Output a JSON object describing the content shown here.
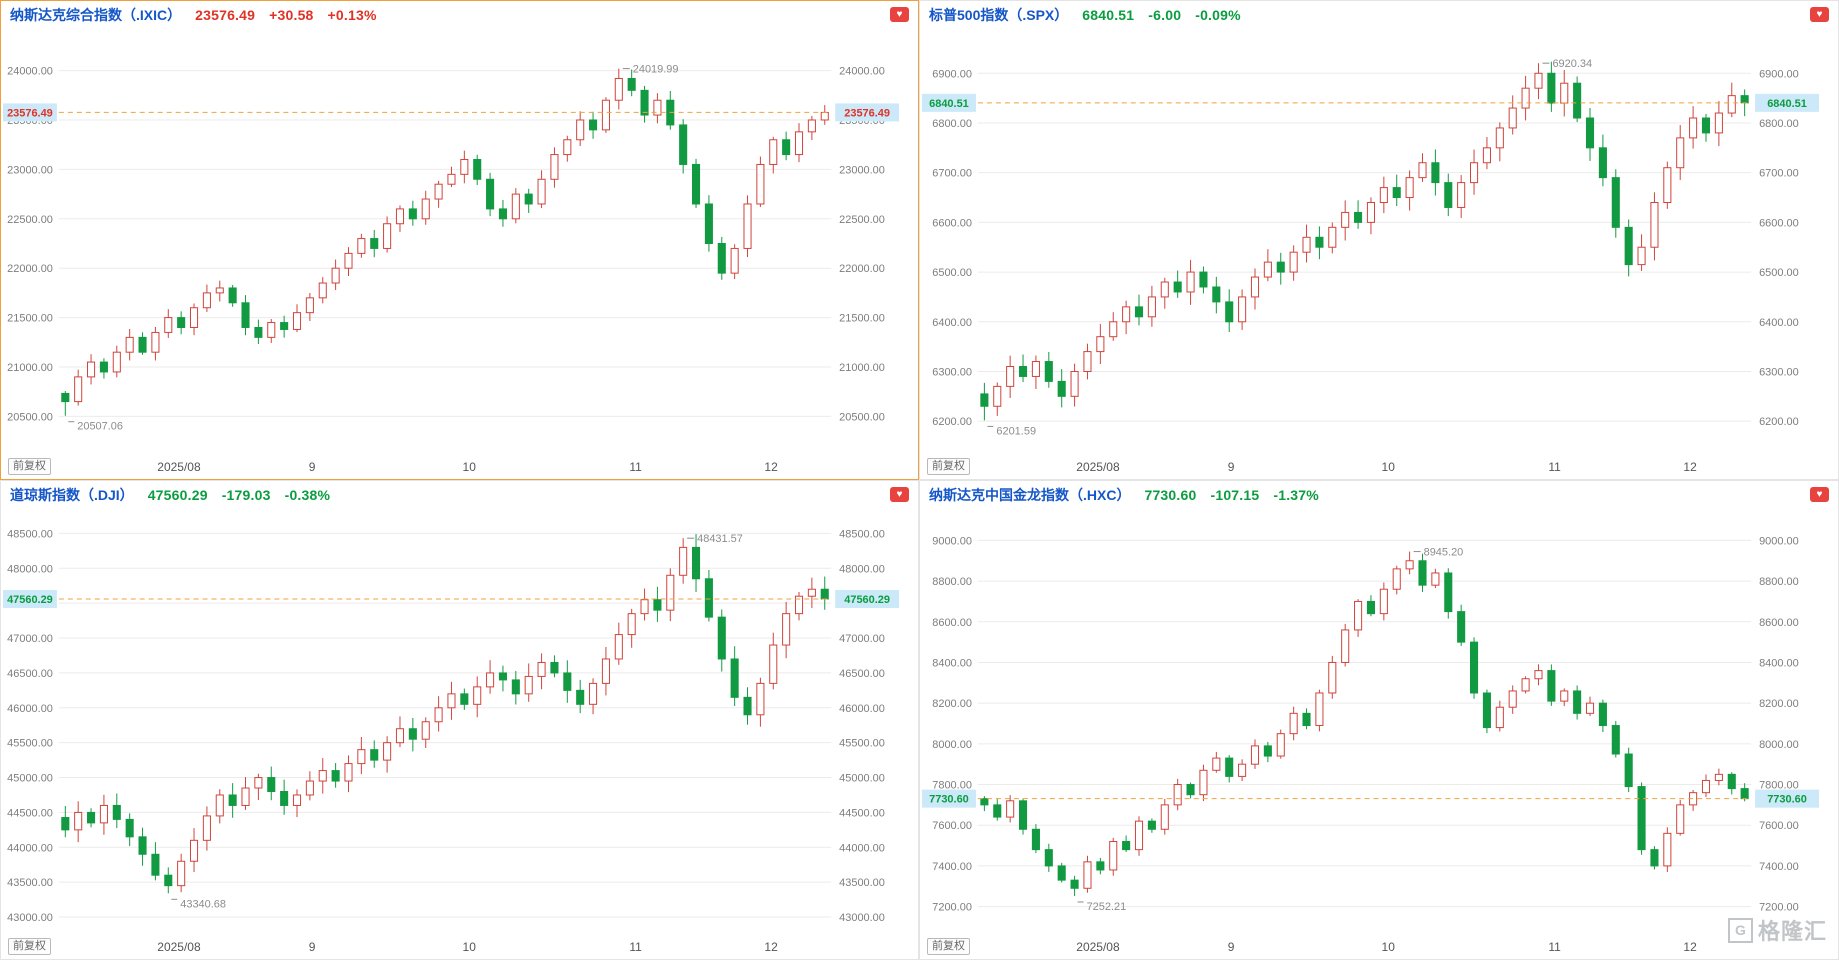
{
  "page": {
    "watermark_logo": "G",
    "watermark_text": "格隆汇"
  },
  "colors": {
    "up": "#d0443c",
    "down": "#129a42",
    "up_text": "#e03225",
    "down_text": "#0a9d3f",
    "title_blue": "#1557c8",
    "grid": "#ebebeb",
    "axis_text": "#7d7d7d",
    "annotation_text": "#8c8c8c",
    "current_line": "#eea23e",
    "label_bg": "#cbe9f8",
    "selected_border": "#efa03a",
    "favorite_bg": "#e8433f"
  },
  "charts": [
    {
      "title": "纳斯达克综合指数（.IXIC）",
      "price": "23576.49",
      "change": "+30.58",
      "change_pct": "+0.13%",
      "direction": "up",
      "selected": true,
      "adjust_label": "前复权",
      "favorite_icon": "heart-icon",
      "chart_data": {
        "type": "candlestick",
        "title": "纳斯达克综合指数（.IXIC）",
        "y_ticks": [
          20500,
          21000,
          21500,
          22000,
          22500,
          23000,
          23500,
          24000
        ],
        "ylim": [
          20150,
          24350
        ],
        "x_ticks": [
          {
            "label": "2025/08",
            "pos": 0.155
          },
          {
            "label": "9",
            "pos": 0.327
          },
          {
            "label": "10",
            "pos": 0.53
          },
          {
            "label": "11",
            "pos": 0.745
          },
          {
            "label": "12",
            "pos": 0.92
          }
        ],
        "last_price": 23576.49,
        "closes": [
          20650,
          20900,
          21050,
          20950,
          21150,
          21300,
          21150,
          21350,
          21500,
          21400,
          21600,
          21750,
          21800,
          21650,
          21400,
          21300,
          21450,
          21380,
          21550,
          21700,
          21850,
          22000,
          22150,
          22300,
          22200,
          22450,
          22600,
          22500,
          22700,
          22850,
          22950,
          23100,
          22900,
          22600,
          22500,
          22750,
          22650,
          22900,
          23150,
          23300,
          23500,
          23400,
          23700,
          23920,
          23800,
          23550,
          23700,
          23450,
          23050,
          22650,
          22250,
          21950,
          22200,
          22650,
          23050,
          23300,
          23150,
          23380,
          23500,
          23576.49
        ],
        "annotations": {
          "high": {
            "index": 43,
            "value": 24019.99,
            "label": "24019.99"
          },
          "low": {
            "index": 0,
            "value": 20507.06,
            "label": "20507.06"
          }
        }
      }
    },
    {
      "title": "标普500指数（.SPX）",
      "price": "6840.51",
      "change": "-6.00",
      "change_pct": "-0.09%",
      "direction": "down",
      "selected": false,
      "adjust_label": "前复权",
      "favorite_icon": "heart-icon",
      "chart_data": {
        "type": "candlestick",
        "title": "标普500指数（.SPX）",
        "y_ticks": [
          6200,
          6300,
          6400,
          6500,
          6600,
          6700,
          6800,
          6900
        ],
        "ylim": [
          6140,
          6975
        ],
        "x_ticks": [
          {
            "label": "2025/08",
            "pos": 0.155
          },
          {
            "label": "9",
            "pos": 0.327
          },
          {
            "label": "10",
            "pos": 0.53
          },
          {
            "label": "11",
            "pos": 0.745
          },
          {
            "label": "12",
            "pos": 0.92
          }
        ],
        "last_price": 6840.51,
        "closes": [
          6230,
          6270,
          6310,
          6290,
          6320,
          6280,
          6250,
          6300,
          6340,
          6370,
          6400,
          6430,
          6410,
          6450,
          6480,
          6460,
          6500,
          6470,
          6440,
          6400,
          6450,
          6490,
          6520,
          6500,
          6540,
          6570,
          6550,
          6590,
          6620,
          6600,
          6640,
          6670,
          6650,
          6690,
          6720,
          6680,
          6630,
          6680,
          6720,
          6750,
          6790,
          6830,
          6870,
          6900,
          6840,
          6880,
          6810,
          6750,
          6690,
          6590,
          6515,
          6550,
          6640,
          6710,
          6770,
          6810,
          6780,
          6820,
          6855,
          6840.51
        ],
        "annotations": {
          "high": {
            "index": 43,
            "value": 6920.34,
            "label": "6920.34"
          },
          "low": {
            "index": 0,
            "value": 6201.59,
            "label": "6201.59"
          }
        }
      }
    },
    {
      "title": "道琼斯指数（.DJI）",
      "price": "47560.29",
      "change": "-179.03",
      "change_pct": "-0.38%",
      "direction": "down",
      "selected": false,
      "adjust_label": "前复权",
      "favorite_icon": "heart-icon",
      "chart_data": {
        "type": "candlestick",
        "title": "道琼斯指数（.DJI）",
        "y_ticks": [
          43000,
          43500,
          44000,
          44500,
          45000,
          45500,
          46000,
          46500,
          47000,
          47500,
          48000,
          48500
        ],
        "ylim": [
          42800,
          48750
        ],
        "x_ticks": [
          {
            "label": "2025/08",
            "pos": 0.155
          },
          {
            "label": "9",
            "pos": 0.327
          },
          {
            "label": "10",
            "pos": 0.53
          },
          {
            "label": "11",
            "pos": 0.745
          },
          {
            "label": "12",
            "pos": 0.92
          }
        ],
        "last_price": 47560.29,
        "closes": [
          44250,
          44500,
          44350,
          44600,
          44400,
          44150,
          43900,
          43600,
          43450,
          43800,
          44100,
          44450,
          44750,
          44600,
          44850,
          45000,
          44800,
          44600,
          44750,
          44950,
          45100,
          44950,
          45200,
          45400,
          45250,
          45500,
          45700,
          45550,
          45800,
          46000,
          46200,
          46050,
          46300,
          46500,
          46400,
          46200,
          46450,
          46650,
          46500,
          46250,
          46050,
          46350,
          46700,
          47050,
          47350,
          47550,
          47400,
          47900,
          48300,
          47850,
          47300,
          46700,
          46150,
          45900,
          46350,
          46900,
          47350,
          47600,
          47700,
          47560.29
        ],
        "annotations": {
          "high": {
            "index": 48,
            "value": 48431.57,
            "label": "48431.57"
          },
          "low": {
            "index": 8,
            "value": 43340.68,
            "label": "43340.68"
          }
        }
      }
    },
    {
      "title": "纳斯达克中国金龙指数（.HXC）",
      "price": "7730.60",
      "change": "-107.15",
      "change_pct": "-1.37%",
      "direction": "down",
      "selected": false,
      "adjust_label": "前复权",
      "favorite_icon": "heart-icon",
      "chart_data": {
        "type": "candlestick",
        "title": "纳斯达克中国金龙指数（.HXC）",
        "y_ticks": [
          7200,
          7400,
          7600,
          7800,
          8000,
          8200,
          8400,
          8600,
          8800,
          9000
        ],
        "ylim": [
          7080,
          9120
        ],
        "x_ticks": [
          {
            "label": "2025/08",
            "pos": 0.155
          },
          {
            "label": "9",
            "pos": 0.327
          },
          {
            "label": "10",
            "pos": 0.53
          },
          {
            "label": "11",
            "pos": 0.745
          },
          {
            "label": "12",
            "pos": 0.92
          }
        ],
        "last_price": 7730.6,
        "closes": [
          7700,
          7640,
          7720,
          7580,
          7480,
          7400,
          7330,
          7290,
          7420,
          7380,
          7520,
          7480,
          7620,
          7580,
          7700,
          7800,
          7750,
          7870,
          7930,
          7840,
          7900,
          7990,
          7940,
          8050,
          8150,
          8090,
          8250,
          8400,
          8560,
          8700,
          8640,
          8760,
          8860,
          8900,
          8780,
          8840,
          8650,
          8500,
          8250,
          8080,
          8180,
          8260,
          8320,
          8360,
          8210,
          8260,
          8150,
          8200,
          8090,
          7950,
          7790,
          7480,
          7400,
          7560,
          7700,
          7760,
          7820,
          7850,
          7780,
          7730.6
        ],
        "annotations": {
          "high": {
            "index": 33,
            "value": 8945.2,
            "label": "8945.20"
          },
          "low": {
            "index": 7,
            "value": 7252.21,
            "label": "7252.21"
          }
        }
      }
    }
  ]
}
